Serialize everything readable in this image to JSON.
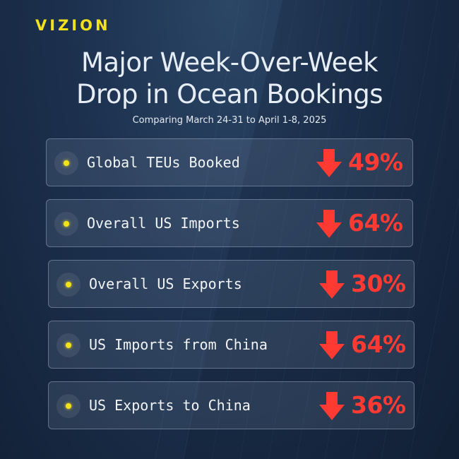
{
  "brand": {
    "logo_text": "VIZION"
  },
  "header": {
    "title_line1": "Major Week-Over-Week",
    "title_line2": "Drop in Ocean Bookings",
    "subtitle": "Comparing March 24-31 to April 1-8, 2025"
  },
  "colors": {
    "accent": "#f4e31a",
    "decline": "#ff3a33",
    "background": "#1d3250"
  },
  "metrics": [
    {
      "label": "Global TEUs Booked",
      "value": "49%",
      "icon": "down-arrow-icon"
    },
    {
      "label": "Overall US Imports",
      "value": "64%",
      "icon": "down-arrow-icon"
    },
    {
      "label": "Overall US Exports",
      "value": "30%",
      "icon": "down-arrow-icon"
    },
    {
      "label": "US Imports from China",
      "value": "64%",
      "icon": "down-arrow-icon"
    },
    {
      "label": "US Exports to China",
      "value": "36%",
      "icon": "down-arrow-icon"
    }
  ]
}
